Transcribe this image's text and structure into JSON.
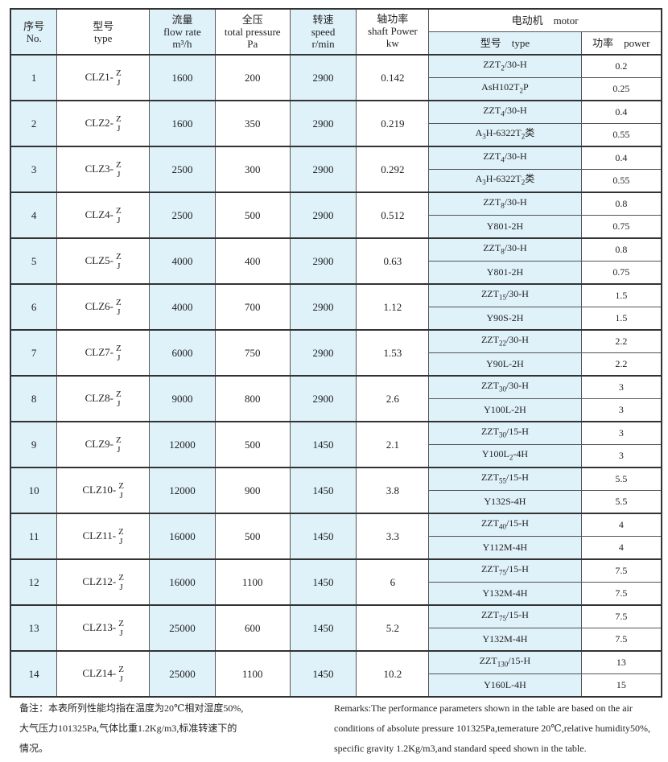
{
  "header": {
    "no": [
      "序号",
      "No."
    ],
    "type": [
      "型号",
      "type"
    ],
    "flow": [
      "流量",
      "flow rate",
      "m³/h"
    ],
    "pressure": [
      "全压",
      "total pressure",
      "Pa"
    ],
    "speed": [
      "转速",
      "speed",
      "r/min"
    ],
    "shaft": [
      "轴功率",
      "shaft Power",
      "kw"
    ],
    "motor": "电动机　motor",
    "motor_type": "型号　type",
    "motor_power": "功率　power"
  },
  "rows": [
    {
      "no": "1",
      "type": "CLZ1-",
      "flow": "1600",
      "pressure": "200",
      "speed": "2900",
      "shaft": "0.142",
      "motors": [
        {
          "type": [
            "ZZT",
            "2",
            "/30-H"
          ],
          "power": "0.2"
        },
        {
          "type": [
            "AsH102T",
            "2",
            "P"
          ],
          "power": "0.25"
        }
      ]
    },
    {
      "no": "2",
      "type": "CLZ2-",
      "flow": "1600",
      "pressure": "350",
      "speed": "2900",
      "shaft": "0.219",
      "motors": [
        {
          "type": [
            "ZZT",
            "4",
            "/30-H"
          ],
          "power": "0.4"
        },
        {
          "type": [
            "A",
            "3",
            "H-6322T",
            "2",
            "类"
          ],
          "power": "0.55"
        }
      ]
    },
    {
      "no": "3",
      "type": "CLZ3-",
      "flow": "2500",
      "pressure": "300",
      "speed": "2900",
      "shaft": "0.292",
      "motors": [
        {
          "type": [
            "ZZT",
            "4",
            "/30-H"
          ],
          "power": "0.4"
        },
        {
          "type": [
            "A",
            "3",
            "H-6322T",
            "2",
            "类"
          ],
          "power": "0.55"
        }
      ]
    },
    {
      "no": "4",
      "type": "CLZ4-",
      "flow": "2500",
      "pressure": "500",
      "speed": "2900",
      "shaft": "0.512",
      "motors": [
        {
          "type": [
            "ZZT",
            "8",
            "/30-H"
          ],
          "power": "0.8"
        },
        {
          "type": [
            "Y801-2H"
          ],
          "power": "0.75"
        }
      ]
    },
    {
      "no": "5",
      "type": "CLZ5-",
      "flow": "4000",
      "pressure": "400",
      "speed": "2900",
      "shaft": "0.63",
      "motors": [
        {
          "type": [
            "ZZT",
            "8",
            "/30-H"
          ],
          "power": "0.8"
        },
        {
          "type": [
            "Y801-2H"
          ],
          "power": "0.75"
        }
      ]
    },
    {
      "no": "6",
      "type": "CLZ6-",
      "flow": "4000",
      "pressure": "700",
      "speed": "2900",
      "shaft": "1.12",
      "motors": [
        {
          "type": [
            "ZZT",
            "15",
            "/30-H"
          ],
          "power": "1.5"
        },
        {
          "type": [
            "Y90S-2H"
          ],
          "power": "1.5"
        }
      ]
    },
    {
      "no": "7",
      "type": "CLZ7-",
      "flow": "6000",
      "pressure": "750",
      "speed": "2900",
      "shaft": "1.53",
      "motors": [
        {
          "type": [
            "ZZT",
            "22",
            "/30-H"
          ],
          "power": "2.2"
        },
        {
          "type": [
            "Y90L-2H"
          ],
          "power": "2.2"
        }
      ]
    },
    {
      "no": "8",
      "type": "CLZ8-",
      "flow": "9000",
      "pressure": "800",
      "speed": "2900",
      "shaft": "2.6",
      "motors": [
        {
          "type": [
            "ZZT",
            "30",
            "/30-H"
          ],
          "power": "3"
        },
        {
          "type": [
            "Y100L-2H"
          ],
          "power": "3"
        }
      ]
    },
    {
      "no": "9",
      "type": "CLZ9-",
      "flow": "12000",
      "pressure": "500",
      "speed": "1450",
      "shaft": "2.1",
      "motors": [
        {
          "type": [
            "ZZT",
            "30",
            "/15-H"
          ],
          "power": "3"
        },
        {
          "type": [
            "Y100L",
            "2",
            "-4H"
          ],
          "power": "3"
        }
      ]
    },
    {
      "no": "10",
      "type": "CLZ10-",
      "flow": "12000",
      "pressure": "900",
      "speed": "1450",
      "shaft": "3.8",
      "motors": [
        {
          "type": [
            "ZZT",
            "55",
            "/15-H"
          ],
          "power": "5.5"
        },
        {
          "type": [
            "Y132S-4H"
          ],
          "power": "5.5"
        }
      ]
    },
    {
      "no": "11",
      "type": "CLZ11-",
      "flow": "16000",
      "pressure": "500",
      "speed": "1450",
      "shaft": "3.3",
      "motors": [
        {
          "type": [
            "ZZT",
            "40",
            "/15-H"
          ],
          "power": "4"
        },
        {
          "type": [
            "Y112M-4H"
          ],
          "power": "4"
        }
      ]
    },
    {
      "no": "12",
      "type": "CLZ12-",
      "flow": "16000",
      "pressure": "1100",
      "speed": "1450",
      "shaft": "6",
      "motors": [
        {
          "type": [
            "ZZT",
            "75",
            "/15-H"
          ],
          "power": "7.5"
        },
        {
          "type": [
            "Y132M-4H"
          ],
          "power": "7.5"
        }
      ]
    },
    {
      "no": "13",
      "type": "CLZ13-",
      "flow": "25000",
      "pressure": "600",
      "speed": "1450",
      "shaft": "5.2",
      "motors": [
        {
          "type": [
            "ZZT",
            "75",
            "/15-H"
          ],
          "power": "7.5"
        },
        {
          "type": [
            "Y132M-4H"
          ],
          "power": "7.5"
        }
      ]
    },
    {
      "no": "14",
      "type": "CLZ14-",
      "flow": "25000",
      "pressure": "1100",
      "speed": "1450",
      "shaft": "10.2",
      "motors": [
        {
          "type": [
            "ZZT",
            "130",
            "/15-H"
          ],
          "power": "13"
        },
        {
          "type": [
            "Y160L-4H"
          ],
          "power": "15"
        }
      ]
    }
  ],
  "type_suffix": [
    "Z",
    "J"
  ],
  "remarks_cn": [
    "备注：本表所列性能均指在温度为20℃相对湿度50%,",
    "大气压力101325Pa,气体比重1.2Kg/m3,标准转速下的",
    "情况。"
  ],
  "remarks_en": [
    "Remarks:The performance parameters shown in the table are based on the air",
    "conditions of absolute pressure 101325Pa,temerature 20℃,relative humidity50%,",
    "specific gravity 1.2Kg/m3,and standard speed shown in the table."
  ],
  "colors": {
    "highlight": "#dff1f9",
    "border": "#333333"
  }
}
